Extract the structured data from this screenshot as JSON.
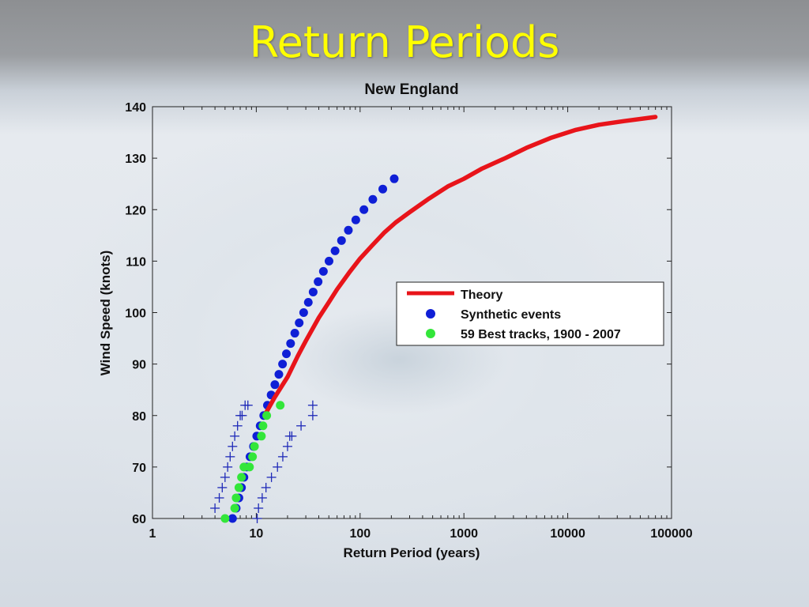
{
  "slide": {
    "title": "Return Periods"
  },
  "chart_data": {
    "type": "scatter",
    "title": "New England",
    "xlabel": "Return Period (years)",
    "ylabel": "Wind Speed (knots)",
    "xscale": "log",
    "xlim": [
      1,
      100000
    ],
    "ylim": [
      60,
      140
    ],
    "xticks": [
      1,
      10,
      100,
      1000,
      10000,
      100000
    ],
    "xtick_labels": [
      "1",
      "10",
      "100",
      "1000",
      "10000",
      "100000"
    ],
    "yticks": [
      60,
      70,
      80,
      90,
      100,
      110,
      120,
      130,
      140
    ],
    "ytick_labels": [
      "60",
      "70",
      "80",
      "90",
      "100",
      "110",
      "120",
      "130",
      "140"
    ],
    "grid": false,
    "legend_position": "right",
    "colors": {
      "theory": "#e8141a",
      "synthetic": "#0f1fd6",
      "best": "#33e63a",
      "ci": "#1f2ab8"
    },
    "series": [
      {
        "name": "Theory",
        "kind": "line",
        "x": [
          12,
          15,
          20,
          25,
          30,
          40,
          50,
          60,
          80,
          100,
          130,
          170,
          220,
          300,
          450,
          700,
          1000,
          1500,
          2500,
          4000,
          7000,
          12000,
          20000,
          35000,
          70000
        ],
        "y": [
          80,
          83.5,
          87.5,
          91.5,
          94.5,
          99,
          102,
          104.5,
          108,
          110.5,
          113,
          115.5,
          117.5,
          119.5,
          122,
          124.5,
          126,
          128,
          130,
          132,
          134,
          135.5,
          136.5,
          137.2,
          138
        ]
      },
      {
        "name": "Synthetic events",
        "kind": "scatter",
        "x": [
          5.9,
          6.4,
          6.8,
          7.2,
          7.6,
          8.1,
          8.7,
          9.4,
          10.1,
          10.9,
          11.8,
          12.8,
          13.9,
          15.1,
          16.5,
          17.9,
          19.5,
          21.4,
          23.5,
          25.9,
          28.6,
          31.7,
          35.3,
          39.4,
          44.3,
          50.2,
          57.4,
          66.2,
          77.1,
          90.9,
          108.9,
          132.6,
          165.4,
          213.2
        ],
        "y": [
          60,
          62,
          64,
          66,
          68,
          70,
          72,
          74,
          76,
          78,
          80,
          82,
          84,
          86,
          88,
          90,
          92,
          94,
          96,
          98,
          100,
          102,
          104,
          106,
          108,
          110,
          112,
          114,
          116,
          118,
          120,
          122,
          124,
          126
        ]
      },
      {
        "name": "59 Best tracks, 1900 - 2007",
        "kind": "scatter",
        "x": [
          5.0,
          6.2,
          6.4,
          6.8,
          7.2,
          7.6,
          8.6,
          9.2,
          9.6,
          11.2,
          11.6,
          12.6,
          17.0
        ],
        "y": [
          60,
          62,
          64,
          66,
          68,
          70,
          70,
          72,
          74,
          76,
          78,
          80,
          82
        ]
      }
    ],
    "confidence_bounds": {
      "lower": {
        "x": [
          4.0,
          4.4,
          4.7,
          5.0,
          5.3,
          5.6,
          5.9,
          6.2,
          6.6,
          7.0,
          7.3,
          7.8,
          8.3
        ],
        "y": [
          62,
          64,
          66,
          68,
          70,
          72,
          74,
          76,
          78,
          80,
          80,
          82,
          82
        ]
      },
      "upper": {
        "x": [
          10.2,
          10.5,
          11.4,
          12.4,
          14.0,
          16.0,
          18.0,
          20.0,
          21.0,
          22.0,
          27.0,
          35.0,
          35.0
        ],
        "y": [
          60,
          62,
          64,
          66,
          68,
          70,
          72,
          74,
          76,
          76,
          78,
          80,
          82
        ]
      }
    }
  }
}
